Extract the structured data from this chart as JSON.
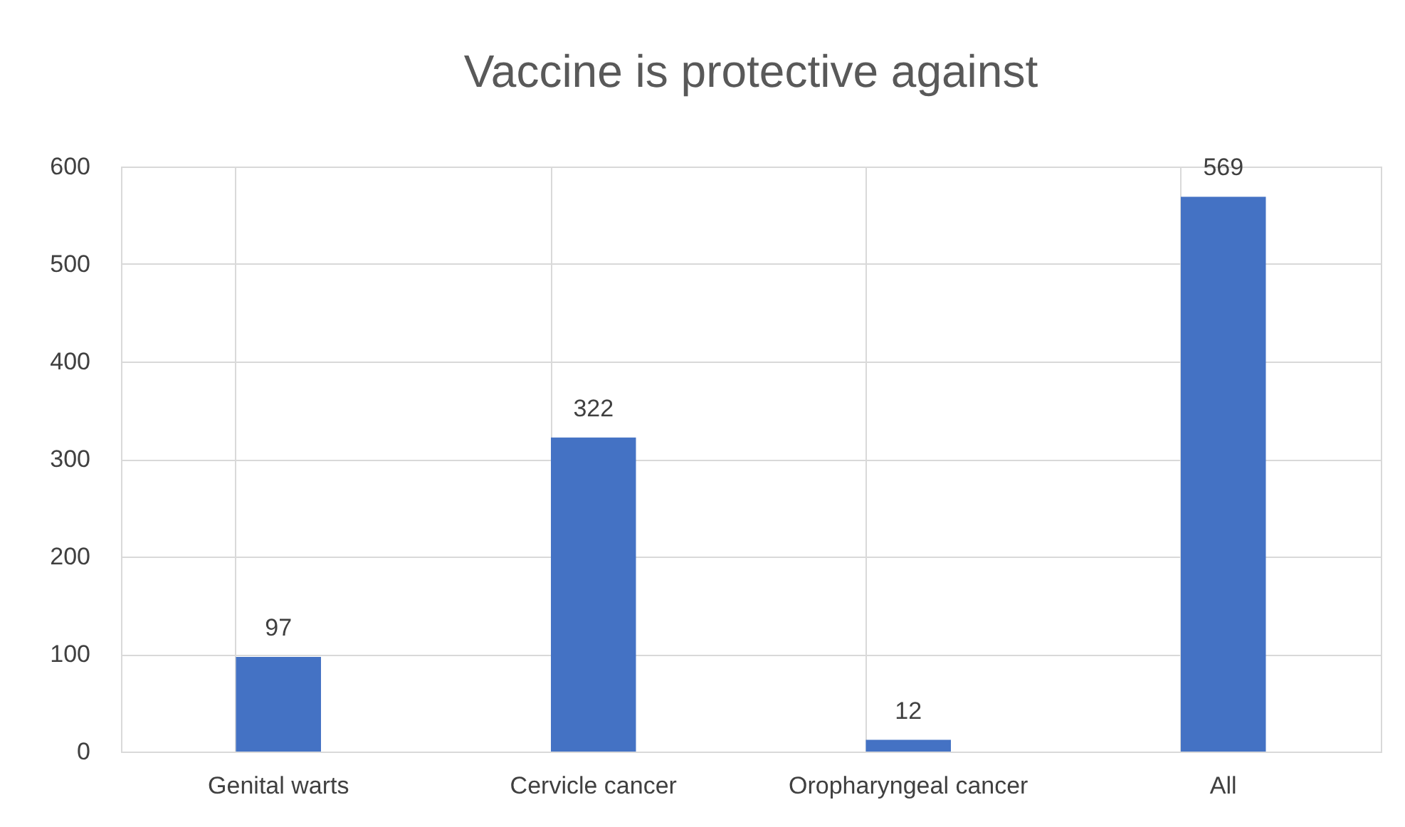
{
  "chart_data": {
    "type": "bar",
    "title": "Vaccine is protective against",
    "categories": [
      "Genital warts",
      "Cervicle cancer",
      "Oropharyngeal cancer",
      "All"
    ],
    "values": [
      97,
      322,
      12,
      569
    ],
    "color": "#4472c4",
    "ylim": [
      0,
      600
    ],
    "yticks": [
      0,
      100,
      200,
      300,
      400,
      500,
      600
    ],
    "grid": true,
    "data_labels": true
  }
}
